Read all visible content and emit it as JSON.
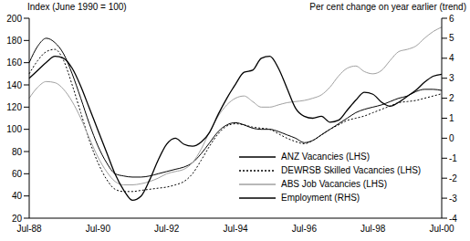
{
  "chart_data": {
    "type": "line",
    "y_label": "Index (June 1990 = 100)",
    "y2_label": "Per cent change on year earlier (trend)",
    "categories": [
      "Jul-88",
      null,
      null,
      null,
      null,
      null,
      null,
      null,
      "Jul-90",
      null,
      null,
      null,
      null,
      null,
      null,
      null,
      "Jul-92",
      null,
      null,
      null,
      null,
      null,
      null,
      null,
      "Jul-94",
      null,
      null,
      null,
      null,
      null,
      null,
      null,
      "Jul-96",
      null,
      null,
      null,
      null,
      null,
      null,
      null,
      "Jul-98",
      null,
      null,
      null,
      null,
      null,
      null,
      null,
      "Jul-00"
    ],
    "ylim": [
      20,
      200
    ],
    "yticks": [
      20,
      40,
      60,
      80,
      100,
      120,
      140,
      160,
      180,
      200
    ],
    "y2lim": [
      -4,
      6
    ],
    "y2ticks": [
      -4,
      -3,
      -2,
      -1,
      0,
      1,
      2,
      3,
      4,
      5,
      6
    ],
    "grid": false,
    "legend": "lower right",
    "series": [
      {
        "name": "ANZ Vacancies (LHS)",
        "color": "#000000",
        "line_style": "solid",
        "values": [
          160,
          175,
          182,
          178,
          168,
          150,
          128,
          105,
          85,
          70,
          60,
          58,
          57,
          57,
          58,
          60,
          62,
          64,
          66,
          70,
          78,
          88,
          98,
          104,
          106,
          104,
          101,
          100,
          100,
          98,
          95,
          92,
          88,
          90,
          95,
          100,
          105,
          110,
          115,
          118,
          120,
          122,
          125,
          128,
          130,
          134,
          136,
          136,
          135
        ]
      },
      {
        "name": "DEWRSB Skilled Vacancies (LHS)",
        "color": "#000000",
        "line_style": "dotted",
        "values": [
          150,
          162,
          170,
          172,
          162,
          140,
          115,
          90,
          70,
          55,
          46,
          44,
          44,
          45,
          46,
          47,
          48,
          50,
          53,
          60,
          72,
          85,
          96,
          103,
          105,
          104,
          102,
          101,
          100,
          96,
          92,
          89,
          87,
          90,
          95,
          100,
          104,
          108,
          110,
          112,
          115,
          118,
          121,
          124,
          125,
          126,
          128,
          130,
          132
        ]
      },
      {
        "name": "ABS Job Vacancies (LHS)",
        "color": "#a0a0a0",
        "line_style": "solid",
        "values": [
          128,
          138,
          143,
          142,
          136,
          125,
          110,
          92,
          75,
          62,
          53,
          50,
          50,
          51,
          53,
          56,
          60,
          62,
          64,
          70,
          82,
          98,
          112,
          122,
          128,
          130,
          125,
          120,
          120,
          122,
          124,
          125,
          126,
          128,
          131,
          138,
          148,
          155,
          157,
          152,
          150,
          153,
          162,
          170,
          172,
          175,
          182,
          188,
          192
        ]
      },
      {
        "name": "Employment (RHS)",
        "color": "#000000",
        "line_style": "solid",
        "axis": "y2",
        "values": [
          3.0,
          3.4,
          3.8,
          4.1,
          4.0,
          3.5,
          2.6,
          1.5,
          0.4,
          -0.7,
          -1.8,
          -2.6,
          -3.1,
          -2.9,
          -2.1,
          -1.1,
          -0.3,
          0.0,
          -0.3,
          -0.4,
          -0.2,
          0.3,
          1.2,
          2.0,
          2.7,
          3.3,
          3.4,
          4.0,
          4.1,
          3.5,
          2.5,
          1.5,
          1.1,
          1.0,
          1.1,
          0.8,
          0.9,
          1.4,
          1.9,
          2.3,
          2.2,
          1.8,
          1.6,
          1.8,
          2.1,
          2.4,
          2.8,
          3.1,
          3.2
        ]
      }
    ]
  }
}
